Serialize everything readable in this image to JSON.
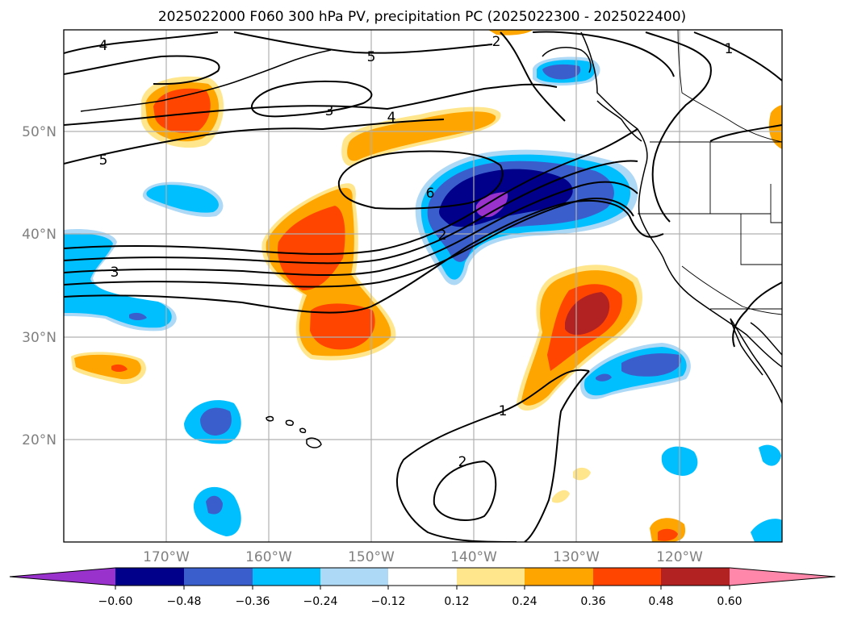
{
  "title": "2025022000 F060 300 hPa PV, precipitation PC (2025022300 - 2025022400)",
  "lat_labels": [
    "50°N",
    "40°N",
    "30°N",
    "20°N"
  ],
  "lon_labels": [
    "170°W",
    "160°W",
    "150°W",
    "140°W",
    "130°W",
    "120°W"
  ],
  "contour_labels": [
    "4",
    "5",
    "2",
    "1",
    "3",
    "4",
    "5",
    "6",
    "2",
    "3",
    "1",
    "2"
  ],
  "colorbar": {
    "tick_labels": [
      "−0.60",
      "−0.48",
      "−0.36",
      "−0.24",
      "−0.12",
      "0.12",
      "0.24",
      "0.36",
      "0.48",
      "0.60"
    ],
    "colors": [
      "#9932cc",
      "#00008b",
      "#3a5fcd",
      "#00bfff",
      "#add8f6",
      "#ffffff",
      "#ffe68c",
      "#ffa500",
      "#ff4500",
      "#b22222",
      "#ff88aa"
    ]
  }
}
